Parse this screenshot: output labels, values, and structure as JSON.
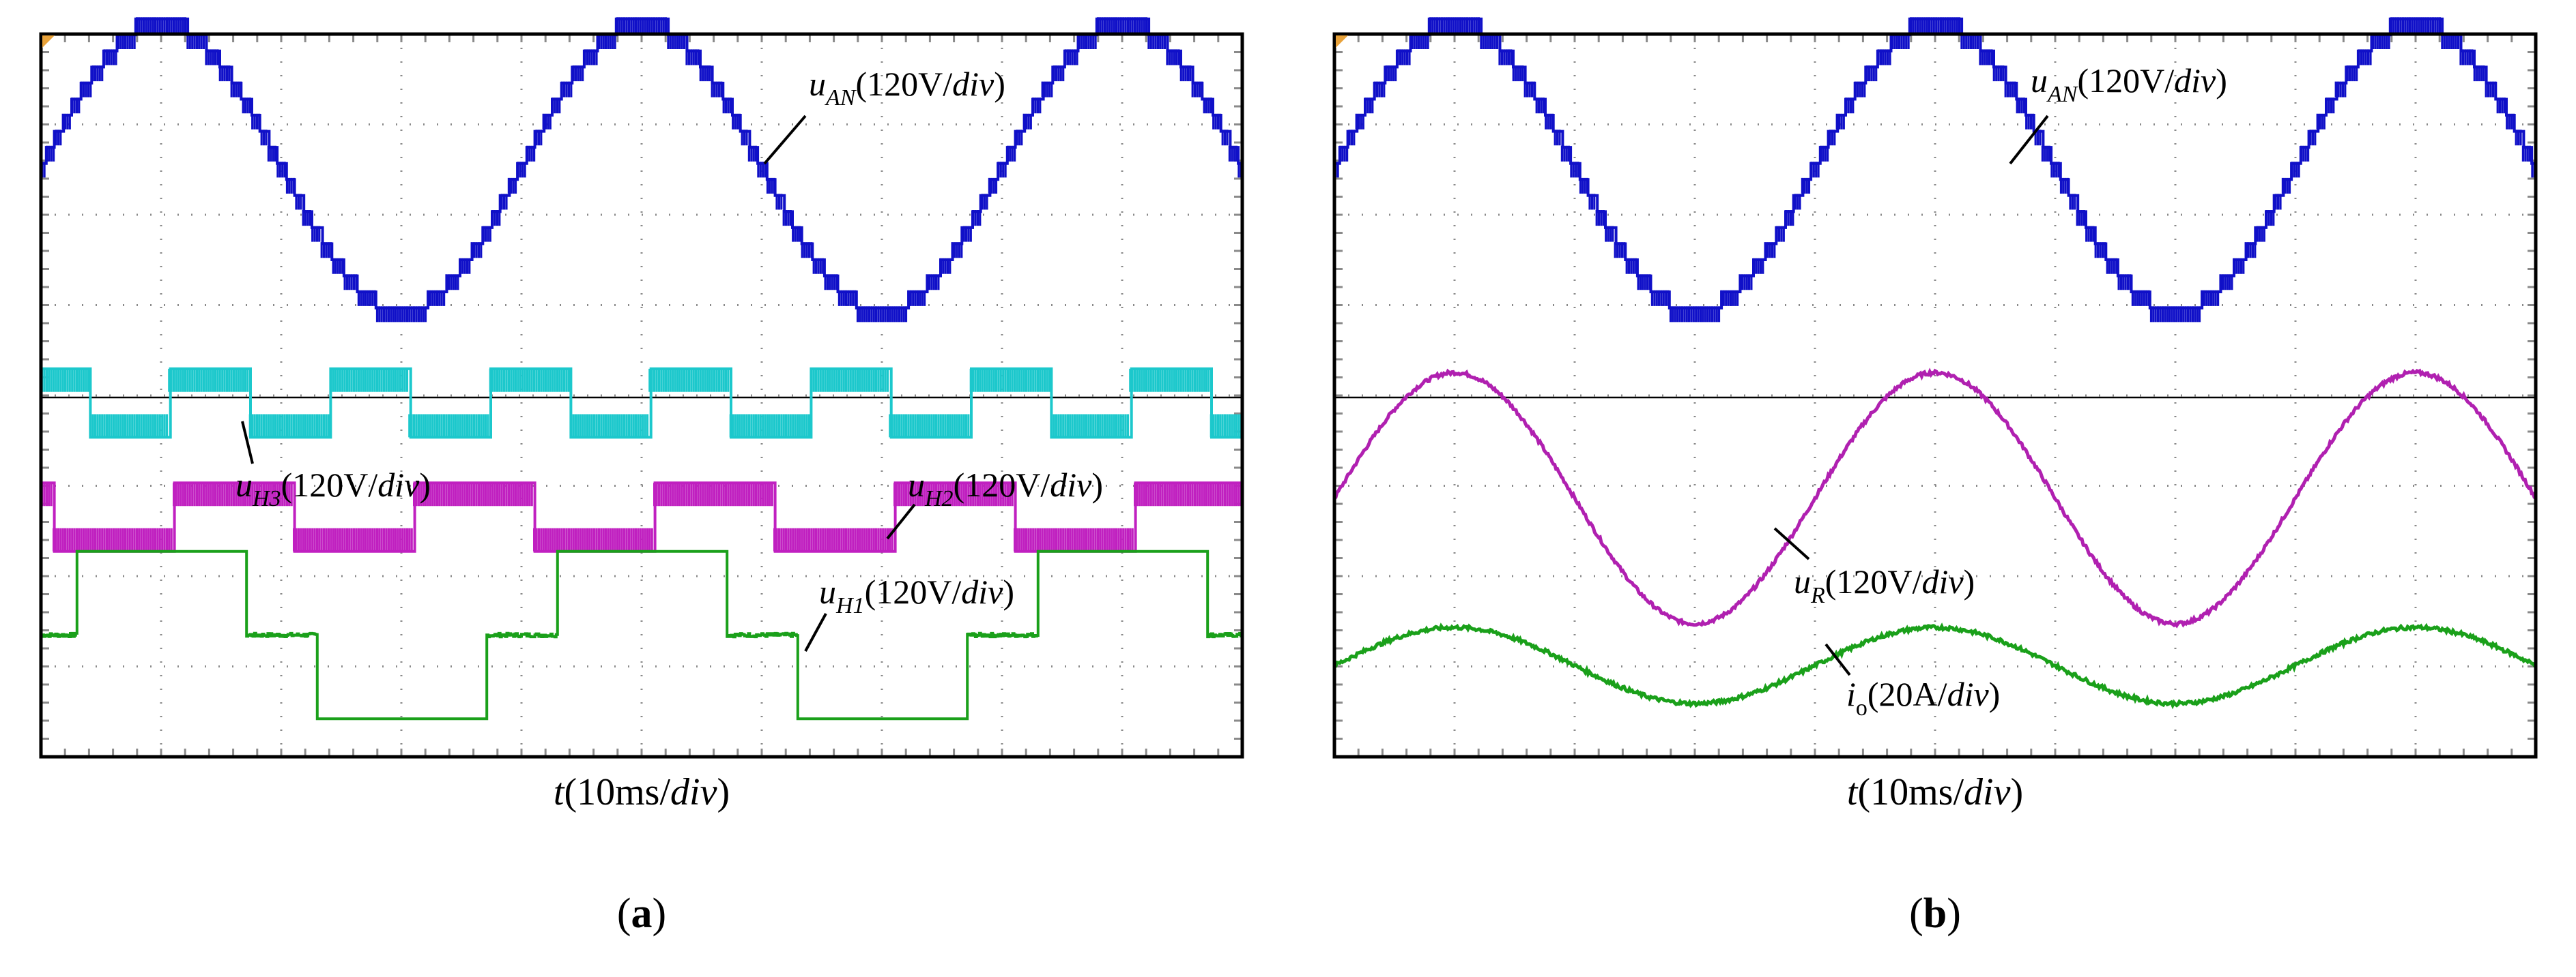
{
  "chart_data": [
    {
      "panel": "a",
      "type": "line",
      "caption": "(a)",
      "xlabel": "t(10ms/div)",
      "xlim": [
        0,
        50
      ],
      "ylim": [
        -5,
        4.5
      ],
      "series": [
        {
          "name": "uAN(120V/div)",
          "symbol": "u",
          "sub": "AN",
          "unit": "(120V/",
          "div": "div",
          "close": ")",
          "color": "#1010c8",
          "kind": "staircase",
          "offset": 2.8,
          "amp": 1.9,
          "period": 20,
          "phase": 0,
          "steps": 9,
          "chop": 0.55
        },
        {
          "name": "uH3(120V/div)",
          "symbol": "u",
          "sub": "H3",
          "unit": "(120V/",
          "div": "div",
          "close": ")",
          "color": "#1cc8cc",
          "kind": "square",
          "offset": -0.35,
          "amp": 0.45,
          "period": 6.667,
          "phase": 0.2,
          "chop": 0.75
        },
        {
          "name": "uH2(120V/div)",
          "symbol": "u",
          "sub": "H2",
          "unit": "(120V/",
          "div": "div",
          "close": ")",
          "color": "#c020c0",
          "kind": "square",
          "offset": -1.85,
          "amp": 0.45,
          "period": 10,
          "phase": 0.45,
          "chop": 0.75
        },
        {
          "name": "uH1(120V/div)",
          "symbol": "u",
          "sub": "H1",
          "unit": "(120V/",
          "div": "div",
          "close": ")",
          "color": "#1aa01a",
          "kind": "square3",
          "offset": -3.4,
          "amp": 1.1,
          "period": 20,
          "phase": 0,
          "chop": 0
        }
      ]
    },
    {
      "panel": "b",
      "type": "line",
      "caption": "(b)",
      "xlabel": "t(10ms/div)",
      "xlim": [
        0,
        50
      ],
      "ylim": [
        -5,
        4.5
      ],
      "series": [
        {
          "name": "uAN(120V/div)",
          "symbol": "u",
          "sub": "AN",
          "unit": "(120V/",
          "div": "div",
          "close": ")",
          "color": "#1010c8",
          "kind": "staircase",
          "offset": 2.8,
          "amp": 1.9,
          "period": 20,
          "phase": 0,
          "steps": 9,
          "chop": 0.55
        },
        {
          "name": "uR(120V/div)",
          "symbol": "u",
          "sub": "R",
          "unit": "(120V/",
          "div": "div",
          "close": ")",
          "color": "#b020b0",
          "kind": "sine",
          "offset": -1.6,
          "amp": 1.65,
          "period": 20,
          "phase": 0,
          "chop": 0
        },
        {
          "name": "io(20A/div)",
          "symbol": "i",
          "sub": "o",
          "unit": "(20A/",
          "div": "div",
          "close": ")",
          "color": "#1aa01a",
          "kind": "sine",
          "offset": -3.8,
          "amp": 0.5,
          "period": 20,
          "phase": 0,
          "chop": 0
        }
      ]
    }
  ]
}
